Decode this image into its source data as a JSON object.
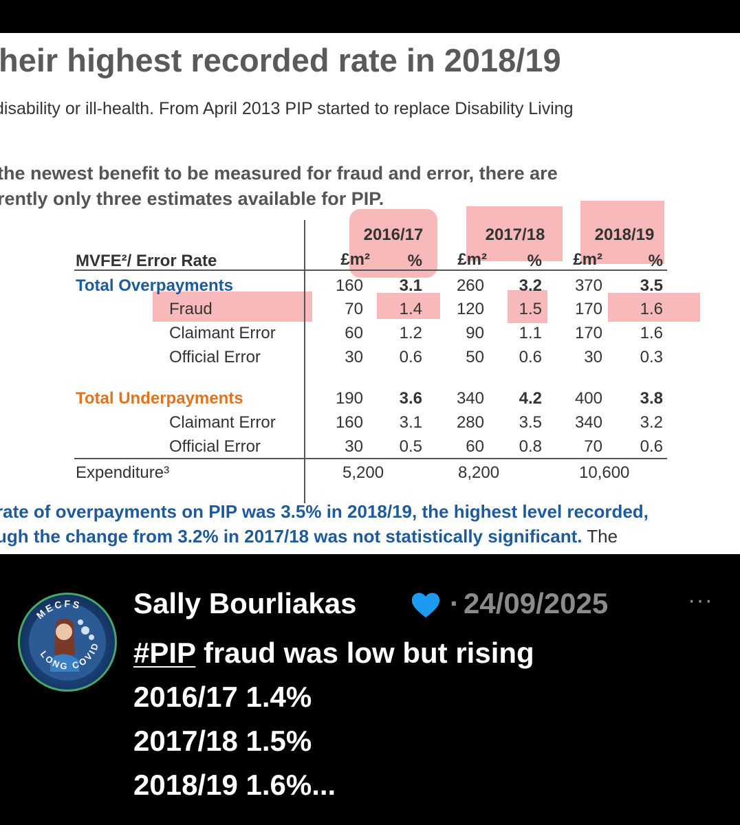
{
  "document": {
    "title": "heir highest recorded rate in 2018/19",
    "line1": "disability or ill-health. From April 2013 PIP started to replace Disability Living",
    "para2_line1": "the newest benefit to be measured for fraud and error, there are",
    "para2_line2": "rently only three estimates available for PIP.",
    "table": {
      "header_label": "MVFE²/ Error Rate",
      "years": [
        "2016/17",
        "2017/18",
        "2018/19"
      ],
      "unit_money": "£m²",
      "unit_pct": "%",
      "rows": [
        {
          "label": "Total Overpayments",
          "values": [
            "160",
            "3.1",
            "260",
            "3.2",
            "370",
            "3.5"
          ]
        },
        {
          "label": "Fraud",
          "values": [
            "70",
            "1.4",
            "120",
            "1.5",
            "170",
            "1.6"
          ]
        },
        {
          "label": "Claimant Error",
          "values": [
            "60",
            "1.2",
            "90",
            "1.1",
            "170",
            "1.6"
          ]
        },
        {
          "label": "Official Error",
          "values": [
            "30",
            "0.6",
            "50",
            "0.6",
            "30",
            "0.3"
          ]
        },
        {
          "label": "Total Underpayments",
          "values": [
            "190",
            "3.6",
            "340",
            "4.2",
            "400",
            "3.8"
          ]
        },
        {
          "label": "Claimant Error",
          "values": [
            "160",
            "3.1",
            "280",
            "3.5",
            "340",
            "3.2"
          ]
        },
        {
          "label": "Official Error",
          "values": [
            "30",
            "0.5",
            "60",
            "0.8",
            "70",
            "0.6"
          ]
        }
      ],
      "expenditure_label": "Expenditure³",
      "expenditure_values": [
        "5,200",
        "8,200",
        "10,600"
      ]
    },
    "conclusion_line1": "rate of overpayments on PIP was 3.5% in 2018/19, the highest level recorded,",
    "conclusion_line2_bold": "ugh the change from 3.2% in 2017/18 was not statistically significant.",
    "conclusion_line2_rest": " The"
  },
  "post": {
    "author": "Sally Bourliakas",
    "separator": "·",
    "date": "24/09/2025",
    "more": "···",
    "hashtag": "#PIP",
    "text_line1_rest": " fraud was low but rising",
    "text_line2": "2016/17  1.4%",
    "text_line3": "2017/18  1.5%",
    "text_line4": "2018/19  1.6%...",
    "avatar_text_top": "MECFS",
    "avatar_text_bottom": "LONG COVID",
    "heart_color": "#1d9bf0"
  }
}
